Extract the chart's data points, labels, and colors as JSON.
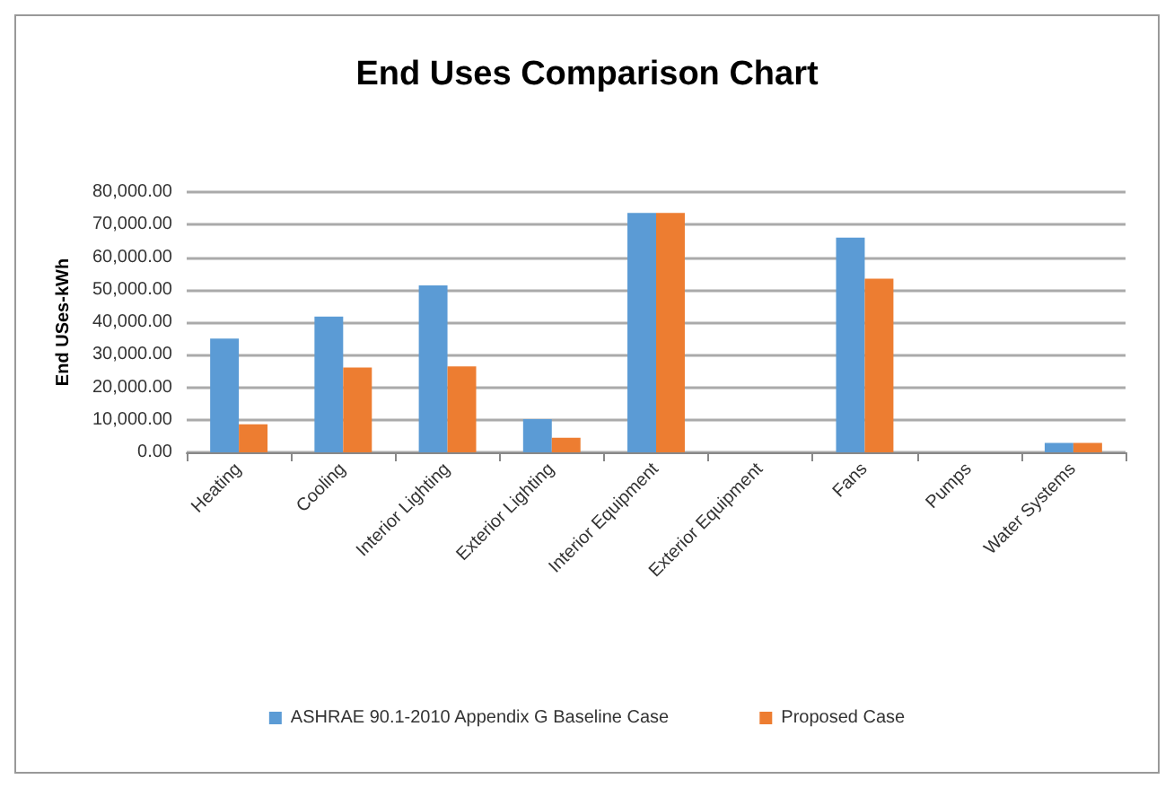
{
  "chart_data": {
    "type": "bar",
    "title": "End Uses Comparison Chart",
    "ylabel": "End USes-kWh",
    "categories": [
      "Heating",
      "Cooling",
      "Interior Lighting",
      "Exterior Lighting",
      "Interior Equipment",
      "Exterior Equipment",
      "Fans",
      "Pumps",
      "Water Systems"
    ],
    "series": [
      {
        "name": "ASHRAE 90.1-2010 Appendix G Baseline Case",
        "color": "#5b9bd5",
        "values": [
          35000,
          41700,
          51300,
          10200,
          73600,
          0,
          66000,
          0,
          2900
        ]
      },
      {
        "name": "Proposed Case",
        "color": "#ed7d31",
        "values": [
          8600,
          26100,
          26400,
          4500,
          73600,
          0,
          53400,
          0,
          2900
        ]
      }
    ],
    "ylim": [
      0,
      80000
    ],
    "yticks": [
      {
        "value": 0,
        "label": "0.00"
      },
      {
        "value": 10000,
        "label": "10,000.00"
      },
      {
        "value": 20000,
        "label": "20,000.00"
      },
      {
        "value": 30000,
        "label": "30,000.00"
      },
      {
        "value": 40000,
        "label": "40,000.00"
      },
      {
        "value": 50000,
        "label": "50,000.00"
      },
      {
        "value": 60000,
        "label": "60,000.00"
      },
      {
        "value": 70000,
        "label": "70,000.00"
      },
      {
        "value": 80000,
        "label": "80,000.00"
      }
    ],
    "grid": "y",
    "legend": "bottom"
  }
}
